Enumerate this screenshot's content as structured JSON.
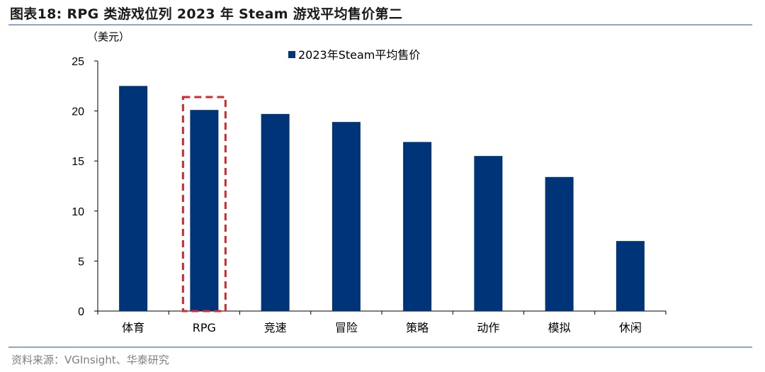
{
  "header": {
    "title": "图表18:  RPG 类游戏位列 2023 年 Steam 游戏平均售价第二"
  },
  "footer": {
    "source": "资料来源：VGInsight、华泰研究"
  },
  "colors": {
    "bar": "#003478",
    "highlight": "#d9262b",
    "axis": "#000000",
    "rule": "#8fa9c4"
  },
  "chart_data": {
    "type": "bar",
    "title": "",
    "ylabel": "（美元）",
    "xlabel": "",
    "ylim": [
      0,
      25
    ],
    "yticks": [
      0,
      5,
      10,
      15,
      20,
      25
    ],
    "categories": [
      "体育",
      "RPG",
      "竞速",
      "冒险",
      "策略",
      "动作",
      "模拟",
      "休闲"
    ],
    "series": [
      {
        "name": "2023年Steam平均售价",
        "values": [
          22.5,
          20.1,
          19.7,
          18.9,
          16.9,
          15.5,
          13.4,
          7.0
        ]
      }
    ],
    "highlight_category": "RPG",
    "legend_position": "top",
    "grid": false
  }
}
